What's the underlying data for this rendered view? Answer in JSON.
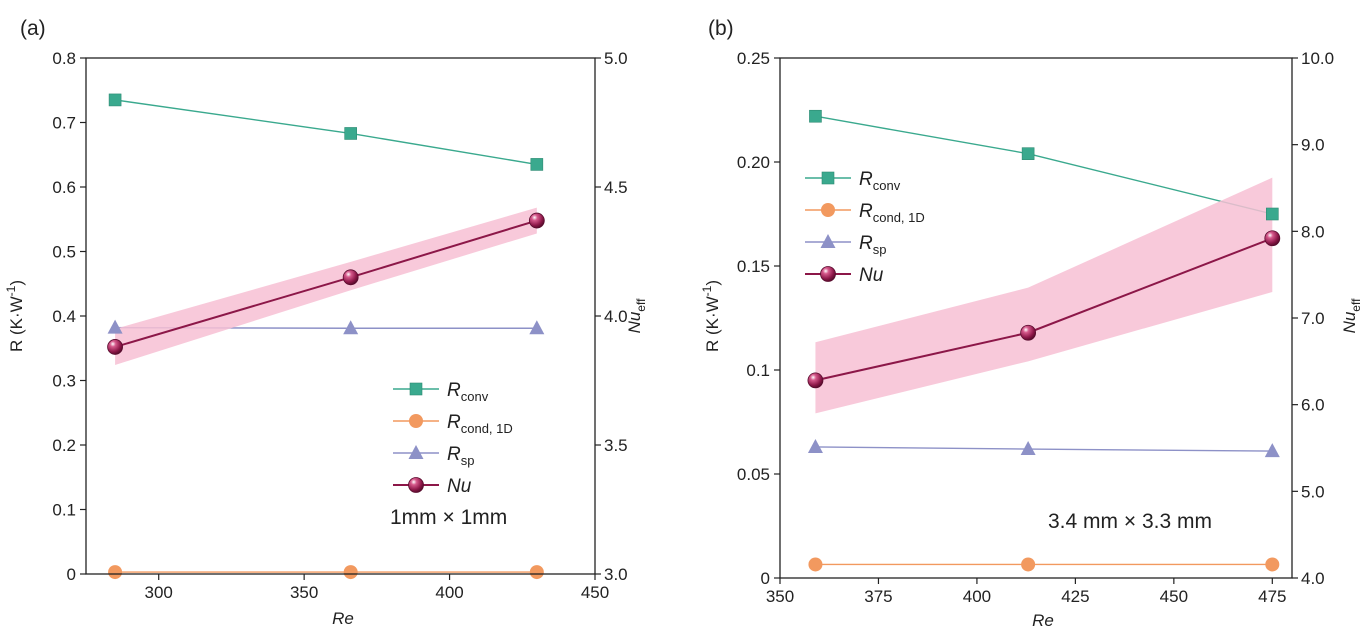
{
  "colors": {
    "r_conv": "#3aa98e",
    "r_cond": "#f2995f",
    "r_sp": "#8d91c7",
    "nu": "#8c1748",
    "band": "#f7bfd3"
  },
  "chart_data": [
    {
      "type": "line",
      "panel_label": "(a)",
      "xlabel": "Re",
      "ylabel": "R (K·W",
      "ylabel_sup": "-1",
      "y2label": "Nu",
      "y2label_sub": "eff",
      "xlim": [
        275,
        450
      ],
      "ylim": [
        0,
        0.8
      ],
      "y2lim": [
        3.0,
        5.0
      ],
      "xticks": [
        "300",
        "350",
        "400",
        "450"
      ],
      "xtick_values": [
        300,
        350,
        400,
        450
      ],
      "yticks": [
        "0",
        "0.1",
        "0.2",
        "0.3",
        "0.4",
        "0.5",
        "0.6",
        "0.7",
        "0.8"
      ],
      "ytick_values": [
        0,
        0.1,
        0.2,
        0.3,
        0.4,
        0.5,
        0.6,
        0.7,
        0.8
      ],
      "y2ticks": [
        "3.0",
        "3.5",
        "4.0",
        "4.5",
        "5.0"
      ],
      "y2tick_values": [
        3.0,
        3.5,
        4.0,
        4.5,
        5.0
      ],
      "annotation": "1mm × 1mm",
      "x": [
        285,
        366,
        430
      ],
      "series": [
        {
          "key": "r_conv",
          "name": "R",
          "name_sub": "conv",
          "axis": "left",
          "marker": "square",
          "values": [
            0.735,
            0.683,
            0.635
          ]
        },
        {
          "key": "r_cond",
          "name": "R",
          "name_sub": "cond, 1D",
          "axis": "left",
          "marker": "circle",
          "values": [
            0.003,
            0.003,
            0.003
          ]
        },
        {
          "key": "r_sp",
          "name": "R",
          "name_sub": "sp",
          "axis": "left",
          "marker": "triangle",
          "values": [
            0.382,
            0.381,
            0.381
          ]
        },
        {
          "key": "nu",
          "name": "Nu",
          "name_sub": "",
          "axis": "right",
          "marker": "sphere",
          "values": [
            3.88,
            4.15,
            4.37
          ],
          "band_lower": [
            3.81,
            4.1,
            4.32
          ],
          "band_upper": [
            3.95,
            4.21,
            4.42
          ]
        }
      ]
    },
    {
      "type": "line",
      "panel_label": "(b)",
      "xlabel": "Re",
      "ylabel": "R (K·W",
      "ylabel_sup": "-1",
      "y2label": "Nu",
      "y2label_sub": "eff",
      "xlim": [
        350,
        480
      ],
      "ylim": [
        0,
        0.25
      ],
      "y2lim": [
        4.0,
        10.0
      ],
      "xticks": [
        "350",
        "375",
        "400",
        "425",
        "450",
        "475"
      ],
      "xtick_values": [
        350,
        375,
        400,
        425,
        450,
        475
      ],
      "yticks": [
        "0",
        "0.05",
        "0.1",
        "0.15",
        "0.20",
        "0.25"
      ],
      "ytick_values": [
        0,
        0.05,
        0.1,
        0.15,
        0.2,
        0.25
      ],
      "y2ticks": [
        "4.0",
        "5.0",
        "6.0",
        "7.0",
        "8.0",
        "9.0",
        "10.0"
      ],
      "y2tick_values": [
        4,
        5,
        6,
        7,
        8,
        9,
        10
      ],
      "annotation": "3.4 mm × 3.3 mm",
      "x": [
        359,
        413,
        475
      ],
      "series": [
        {
          "key": "r_conv",
          "name": "R",
          "name_sub": "conv",
          "axis": "left",
          "marker": "square",
          "values": [
            0.222,
            0.204,
            0.175
          ]
        },
        {
          "key": "r_cond",
          "name": "R",
          "name_sub": "cond, 1D",
          "axis": "left",
          "marker": "circle",
          "values": [
            0.0065,
            0.0065,
            0.0065
          ]
        },
        {
          "key": "r_sp",
          "name": "R",
          "name_sub": "sp",
          "axis": "left",
          "marker": "triangle",
          "values": [
            0.063,
            0.062,
            0.061
          ]
        },
        {
          "key": "nu",
          "name": "Nu",
          "name_sub": "",
          "axis": "right",
          "marker": "sphere",
          "values": [
            6.28,
            6.83,
            7.92
          ],
          "band_lower": [
            5.9,
            6.5,
            7.3
          ],
          "band_upper": [
            6.72,
            7.35,
            8.62
          ]
        }
      ]
    }
  ]
}
